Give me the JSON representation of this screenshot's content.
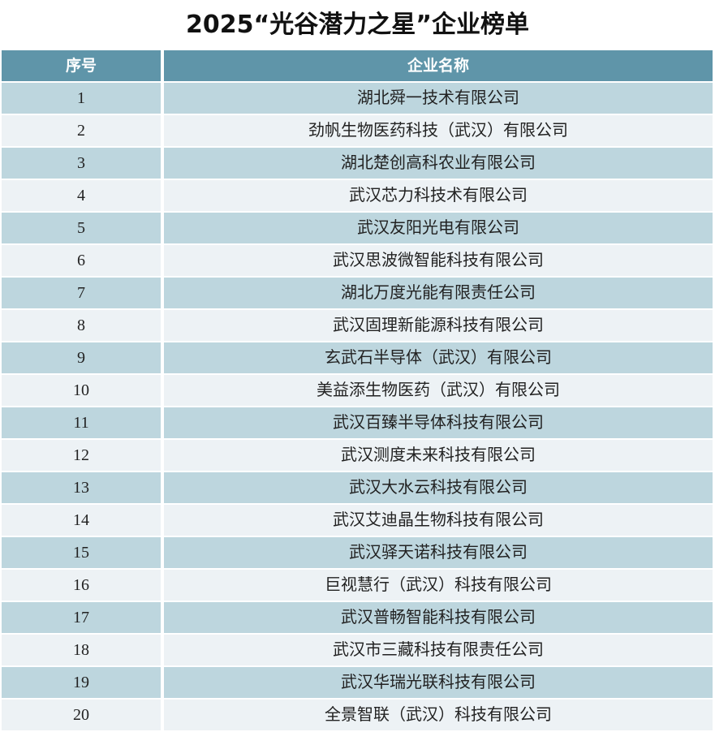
{
  "header": {
    "title": "2025“光谷潜力之星”企业榜单"
  },
  "table": {
    "columns": [
      "序号",
      "企业名称"
    ],
    "rows": [
      [
        1,
        "湖北舜一技术有限公司"
      ],
      [
        2,
        "劲帆生物医药科技（武汉）有限公司"
      ],
      [
        3,
        "湖北楚创高科农业有限公司"
      ],
      [
        4,
        "武汉芯力科技术有限公司"
      ],
      [
        5,
        "武汉友阳光电有限公司"
      ],
      [
        6,
        "武汉思波微智能科技有限公司"
      ],
      [
        7,
        "湖北万度光能有限责任公司"
      ],
      [
        8,
        "武汉固理新能源科技有限公司"
      ],
      [
        9,
        "玄武石半导体（武汉）有限公司"
      ],
      [
        10,
        "美益添生物医药（武汉）有限公司"
      ],
      [
        11,
        "武汉百臻半导体科技有限公司"
      ],
      [
        12,
        "武汉测度未来科技有限公司"
      ],
      [
        13,
        "武汉大水云科技有限公司"
      ],
      [
        14,
        "武汉艾迪晶生物科技有限公司"
      ],
      [
        15,
        "武汉驿天诺科技有限公司"
      ],
      [
        16,
        "巨视慧行（武汉）科技有限公司"
      ],
      [
        17,
        "武汉普畅智能科技有限公司"
      ],
      [
        18,
        "武汉市三藏科技有限责任公司"
      ],
      [
        19,
        "武汉华瑞光联科技有限公司"
      ],
      [
        20,
        "全景智联（武汉）科技有限公司"
      ]
    ]
  }
}
